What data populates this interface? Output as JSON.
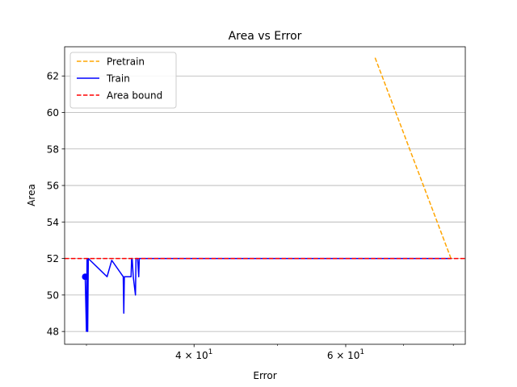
{
  "chart_data": {
    "type": "line",
    "title": "Area vs Error",
    "xlabel": "Error",
    "ylabel": "Area",
    "xscale": "log",
    "xlim": [
      28.3,
      82.6
    ],
    "ylim": [
      47.3,
      63.6
    ],
    "grid": "horizontal",
    "legend_position": "top-left",
    "x_ticks": [
      {
        "value": 40,
        "base": "4 × 10",
        "exp": "1"
      },
      {
        "value": 60,
        "base": "6 × 10",
        "exp": "1"
      }
    ],
    "x_minor_ticks": [
      30,
      50,
      70,
      80
    ],
    "y_ticks": [
      48,
      50,
      52,
      54,
      56,
      58,
      60,
      62
    ],
    "series": [
      {
        "name": "Pretrain",
        "color": "#ffa500",
        "style": "dashed",
        "points": [
          [
            64.9,
            63.0
          ],
          [
            79.5,
            52.0
          ]
        ]
      },
      {
        "name": "Train",
        "color": "#0000ff",
        "style": "solid",
        "points": [
          [
            29.9,
            51.0
          ],
          [
            30.0,
            48.0
          ],
          [
            30.05,
            52.0
          ],
          [
            30.1,
            48.0
          ],
          [
            30.15,
            52.0
          ],
          [
            30.3,
            51.9
          ],
          [
            31.7,
            51.0
          ],
          [
            32.1,
            51.9
          ],
          [
            33.1,
            51.0
          ],
          [
            33.15,
            49.0
          ],
          [
            33.2,
            51.0
          ],
          [
            33.8,
            51.0
          ],
          [
            33.85,
            52.0
          ],
          [
            33.9,
            52.0
          ],
          [
            34.0,
            51.0
          ],
          [
            34.2,
            50.0
          ],
          [
            34.25,
            52.0
          ],
          [
            34.4,
            52.0
          ],
          [
            34.5,
            51.0
          ],
          [
            34.55,
            52.0
          ],
          [
            35.0,
            52.0
          ],
          [
            79.5,
            52.0
          ]
        ]
      },
      {
        "name": "Area bound",
        "color": "#ff0000",
        "style": "dashed",
        "hline": 52.0
      }
    ],
    "markers": [
      {
        "series": "Train",
        "x": 29.9,
        "y": 51.0
      }
    ]
  }
}
